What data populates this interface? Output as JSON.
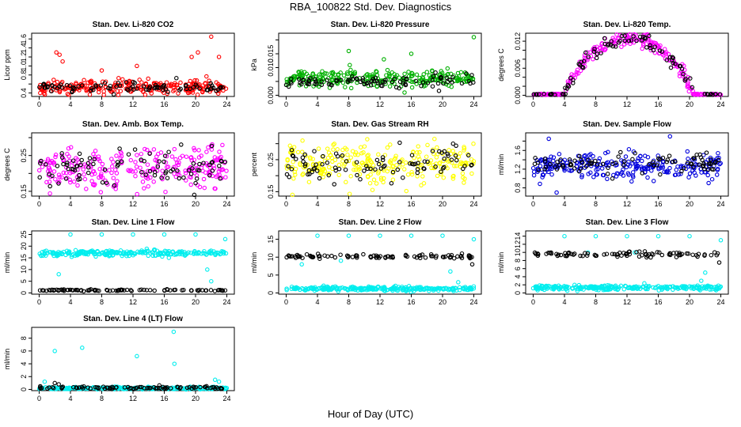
{
  "title": "RBA_100822  Std. Dev. Diagnostics",
  "xlabel": "Hour of Day (UTC)",
  "chart_data": [
    {
      "type": "scatter",
      "title": "Stan. Dev. Li-820 CO2",
      "ylabel": "Licor ppm",
      "xlim": [
        0,
        24
      ],
      "ylim": [
        0.35,
        1.7
      ],
      "yticks": [
        0.4,
        0.6,
        0.8,
        1.0,
        1.2,
        1.4,
        1.6
      ],
      "ytick_labels": [
        "0.4",
        "",
        "0.8",
        "1.0",
        "1.2",
        "1.4",
        "1.6"
      ],
      "xticks": [
        0,
        4,
        8,
        12,
        16,
        20,
        24
      ],
      "grid": false,
      "series": [
        {
          "color": "#ff0000",
          "base": 0.53,
          "spread": 0.08,
          "outliers": [
            [
              2.2,
              1.3
            ],
            [
              2.6,
              1.25
            ],
            [
              3.0,
              1.1
            ],
            [
              8.0,
              0.9
            ],
            [
              12.5,
              1.0
            ],
            [
              19.5,
              1.2
            ],
            [
              20.3,
              1.3
            ],
            [
              22.0,
              1.65
            ],
            [
              23.0,
              1.2
            ]
          ]
        },
        {
          "color": "#000000",
          "base": 0.54,
          "spread": 0.05,
          "outliers": []
        }
      ]
    },
    {
      "type": "scatter",
      "title": "Stan. Dev. Li-820 Pressure",
      "ylabel": "kPa",
      "xlim": [
        0,
        24
      ],
      "ylim": [
        0,
        0.022
      ],
      "yticks": [
        0.0,
        0.005,
        0.01,
        0.015,
        0.02
      ],
      "ytick_labels": [
        "0.000",
        "",
        "0.010",
        "0.015",
        ""
      ],
      "xticks": [
        0,
        4,
        8,
        12,
        16,
        20,
        24
      ],
      "grid": false,
      "series": [
        {
          "color": "#00b000",
          "base": 0.006,
          "spread": 0.0015,
          "outliers": [
            [
              8.0,
              0.016
            ],
            [
              12.5,
              0.013
            ],
            [
              16.0,
              0.015
            ],
            [
              24.0,
              0.021
            ]
          ]
        },
        {
          "color": "#000000",
          "base": 0.005,
          "spread": 0.0012,
          "outliers": []
        }
      ]
    },
    {
      "type": "scatter",
      "title": "Stan. Dev. Li-820 Temp.",
      "ylabel": "degrees C",
      "xlim": [
        0,
        24
      ],
      "ylim": [
        0,
        0.0135
      ],
      "yticks": [
        0.0,
        0.002,
        0.004,
        0.006,
        0.008,
        0.01,
        0.012
      ],
      "ytick_labels": [
        "0.000",
        "",
        "",
        "0.006",
        "",
        "",
        "0.012"
      ],
      "xticks": [
        0,
        4,
        8,
        12,
        16,
        20,
        24
      ],
      "grid": false,
      "profile": "diurnal",
      "series": [
        {
          "color": "#ff00ff"
        },
        {
          "color": "#000000"
        }
      ]
    },
    {
      "type": "scatter",
      "title": "Stan. Dev. Amb. Box Temp.",
      "ylabel": "degrees C",
      "xlim": [
        0,
        24
      ],
      "ylim": [
        0.14,
        0.31
      ],
      "yticks": [
        0.15,
        0.2,
        0.25,
        0.3
      ],
      "ytick_labels": [
        "0.15",
        "",
        "0.25",
        ""
      ],
      "xticks": [
        0,
        4,
        8,
        12,
        16,
        20,
        24
      ],
      "grid": false,
      "series": [
        {
          "color": "#ff00ff",
          "base": 0.215,
          "spread": 0.03,
          "outliers": []
        },
        {
          "color": "#000000",
          "base": 0.215,
          "spread": 0.025,
          "outliers": []
        }
      ]
    },
    {
      "type": "scatter",
      "title": "Stan. Dev. Gas Stream RH",
      "ylabel": "percent",
      "xlim": [
        0,
        24
      ],
      "ylim": [
        0.14,
        0.33
      ],
      "yticks": [
        0.15,
        0.2,
        0.25,
        0.3
      ],
      "ytick_labels": [
        "0.15",
        "",
        "0.25",
        ""
      ],
      "xticks": [
        0,
        4,
        8,
        12,
        16,
        20,
        24
      ],
      "grid": false,
      "series": [
        {
          "color": "#ffff00",
          "base": 0.24,
          "spread": 0.03,
          "outliers": []
        },
        {
          "color": "#000000",
          "base": 0.235,
          "spread": 0.025,
          "outliers": []
        }
      ]
    },
    {
      "type": "scatter",
      "title": "Stan. Dev. Sample Flow",
      "ylabel": "ml/min",
      "xlim": [
        0,
        24
      ],
      "ylim": [
        0.65,
        1.95
      ],
      "yticks": [
        0.8,
        1.0,
        1.2,
        1.4,
        1.6,
        1.8
      ],
      "ytick_labels": [
        "0.8",
        "",
        "1.2",
        "",
        "1.6",
        ""
      ],
      "xticks": [
        0,
        4,
        8,
        12,
        16,
        20,
        24
      ],
      "grid": false,
      "series": [
        {
          "color": "#0000dd",
          "base": 1.25,
          "spread": 0.15,
          "outliers": [
            [
              2.0,
              1.85
            ],
            [
              17.5,
              1.9
            ],
            [
              3.0,
              0.7
            ]
          ]
        },
        {
          "color": "#000000",
          "base": 1.3,
          "spread": 0.1,
          "outliers": []
        }
      ]
    },
    {
      "type": "scatter",
      "title": "Stan. Dev. Line 1 Flow",
      "ylabel": "ml/min",
      "xlim": [
        0,
        24
      ],
      "ylim": [
        0,
        26
      ],
      "yticks": [
        0,
        5,
        10,
        15,
        20,
        25
      ],
      "ytick_labels": [
        "0",
        "5",
        "10",
        "15",
        "20",
        "25"
      ],
      "xticks": [
        0,
        4,
        8,
        12,
        16,
        20,
        24
      ],
      "grid": false,
      "series": [
        {
          "color": "#00eeee",
          "base": 17,
          "spread": 0.6,
          "outliers": [
            [
              2.5,
              8
            ],
            [
              4.0,
              25
            ],
            [
              8.0,
              25
            ],
            [
              12.0,
              25
            ],
            [
              16.0,
              25
            ],
            [
              20.0,
              25
            ],
            [
              21.5,
              10
            ],
            [
              22.0,
              5
            ],
            [
              23.8,
              23
            ]
          ]
        },
        {
          "color": "#000000",
          "base": 1.2,
          "spread": 0.15,
          "outliers": []
        }
      ]
    },
    {
      "type": "scatter",
      "title": "Stan. Dev. Line 2 Flow",
      "ylabel": "ml/min",
      "xlim": [
        0,
        24
      ],
      "ylim": [
        0,
        17
      ],
      "yticks": [
        0,
        5,
        10,
        15
      ],
      "ytick_labels": [
        "0",
        "5",
        "10",
        "15"
      ],
      "xticks": [
        0,
        4,
        8,
        12,
        16,
        20,
        24
      ],
      "grid": false,
      "series": [
        {
          "color": "#00eeee",
          "base": 1.2,
          "spread": 0.3,
          "outliers": [
            [
              4.0,
              16
            ],
            [
              8.0,
              16
            ],
            [
              12.0,
              16
            ],
            [
              16.0,
              16
            ],
            [
              20.0,
              16
            ],
            [
              24.0,
              15
            ],
            [
              2.0,
              8
            ],
            [
              7.0,
              9
            ],
            [
              21.0,
              6
            ],
            [
              22.0,
              3
            ]
          ]
        },
        {
          "color": "#000000",
          "base": 10.2,
          "spread": 0.3,
          "outliers": [
            [
              23.8,
              8
            ]
          ]
        }
      ]
    },
    {
      "type": "scatter",
      "title": "Stan. Dev. Line 3 Flow",
      "ylabel": "ml/min",
      "xlim": [
        0,
        24
      ],
      "ylim": [
        0,
        15
      ],
      "yticks": [
        0,
        2,
        4,
        6,
        8,
        10,
        12,
        14
      ],
      "ytick_labels": [
        "0",
        "2",
        "4",
        "6",
        "8",
        "10",
        "12",
        "14"
      ],
      "xticks": [
        0,
        4,
        8,
        12,
        16,
        20,
        24
      ],
      "grid": false,
      "series": [
        {
          "color": "#00eeee",
          "base": 1.3,
          "spread": 0.3,
          "outliers": [
            [
              4.0,
              14
            ],
            [
              8.0,
              14
            ],
            [
              12.0,
              14
            ],
            [
              16.0,
              14
            ],
            [
              20.0,
              14
            ],
            [
              24.0,
              13
            ],
            [
              7.0,
              10
            ],
            [
              13.0,
              10
            ],
            [
              21.5,
              3
            ],
            [
              22.0,
              5
            ]
          ]
        },
        {
          "color": "#000000",
          "base": 9.5,
          "spread": 0.3,
          "outliers": [
            [
              23.8,
              7.5
            ]
          ]
        }
      ]
    },
    {
      "type": "scatter",
      "title": "Stan. Dev. Line 4 (LT) Flow",
      "ylabel": "ml/min",
      "xlim": [
        0,
        24
      ],
      "ylim": [
        0,
        9.5
      ],
      "yticks": [
        0,
        2,
        4,
        6,
        8
      ],
      "ytick_labels": [
        "0",
        "2",
        "4",
        "6",
        "8"
      ],
      "xticks": [
        0,
        4,
        8,
        12,
        16,
        20,
        24
      ],
      "grid": false,
      "series": [
        {
          "color": "#00eeee",
          "base": 0.2,
          "spread": 0.1,
          "outliers": [
            [
              2.0,
              6
            ],
            [
              5.5,
              6.5
            ],
            [
              12.5,
              5.2
            ],
            [
              17.2,
              9.0
            ],
            [
              17.3,
              4.0
            ],
            [
              0.7,
              1.2
            ],
            [
              22.5,
              1.5
            ],
            [
              23.0,
              1.2
            ]
          ]
        },
        {
          "color": "#000000",
          "base": 0.25,
          "spread": 0.1,
          "outliers": [
            [
              2.0,
              1.0
            ],
            [
              2.5,
              0.8
            ]
          ]
        }
      ]
    }
  ]
}
